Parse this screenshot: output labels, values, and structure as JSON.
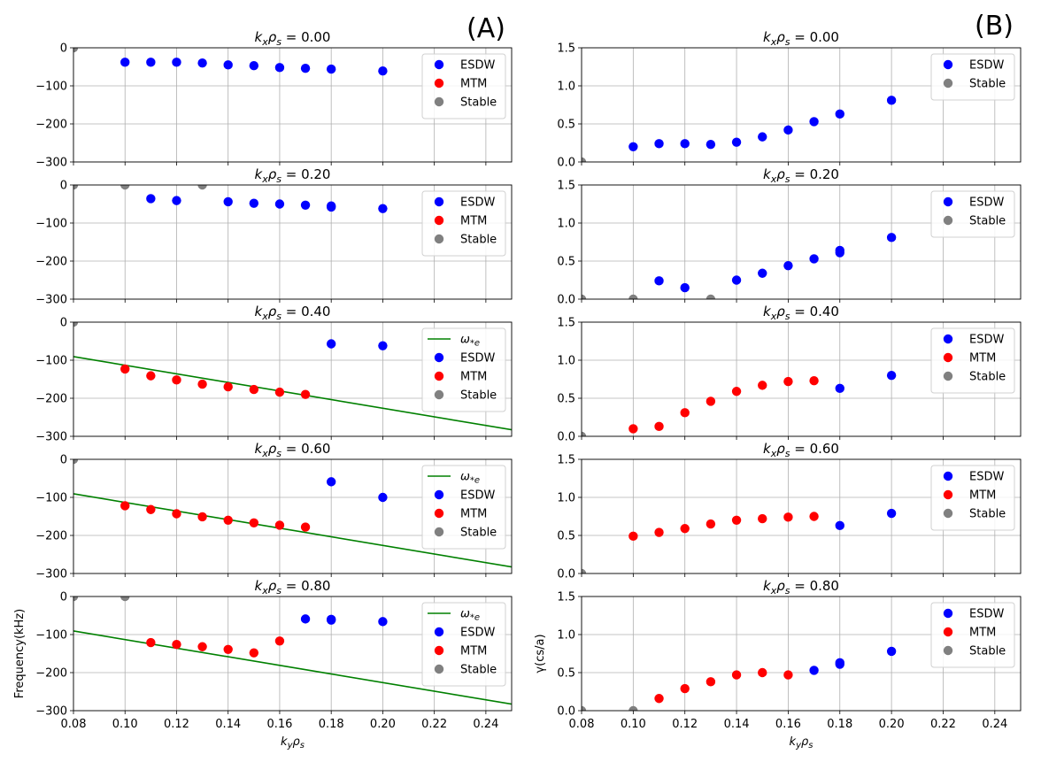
{
  "figure": {
    "panel_labels": [
      "(A)",
      "(B)"
    ],
    "legend_labels": {
      "omega": "ω*e",
      "ESDW": "ESDW",
      "MTM": "MTM",
      "Stable": "Stable"
    },
    "colors": {
      "ESDW": "#0000ff",
      "MTM": "#ff0000",
      "Stable": "#808080",
      "omega": "#008000",
      "grid": "#b0b0b0"
    }
  },
  "chart_data": [
    {
      "type": "scatter",
      "panel": "A",
      "title": "k_x ρ_s = 0.00",
      "title_kx": "0.00",
      "xlabel": "",
      "ylabel": "",
      "xlim": [
        0.08,
        0.25
      ],
      "ylim": [
        -300,
        0
      ],
      "xticks": [],
      "yticks": [
        0,
        -100,
        -200,
        -300
      ],
      "ytick_labels": [
        "0",
        "−100",
        "−200",
        "−300"
      ],
      "grid": true,
      "legend_position": "top-right",
      "legend": [
        "ESDW",
        "MTM",
        "Stable"
      ],
      "series": [
        {
          "name": "ESDW",
          "x": [
            0.1,
            0.11,
            0.12,
            0.13,
            0.14,
            0.15,
            0.16,
            0.17,
            0.18,
            0.2
          ],
          "y": [
            -38,
            -38,
            -38,
            -40,
            -45,
            -47,
            -52,
            -54,
            -56,
            -61
          ]
        },
        {
          "name": "MTM",
          "x": [],
          "y": []
        },
        {
          "name": "Stable",
          "x": [
            0.08
          ],
          "y": [
            0
          ]
        }
      ]
    },
    {
      "type": "scatter",
      "panel": "A",
      "title": "k_x ρ_s = 0.20",
      "title_kx": "0.20",
      "xlabel": "",
      "ylabel": "",
      "xlim": [
        0.08,
        0.25
      ],
      "ylim": [
        -300,
        0
      ],
      "xticks": [],
      "yticks": [
        0,
        -100,
        -200,
        -300
      ],
      "ytick_labels": [
        "0",
        "−100",
        "−200",
        "−300"
      ],
      "grid": true,
      "legend_position": "top-right",
      "legend": [
        "ESDW",
        "MTM",
        "Stable"
      ],
      "series": [
        {
          "name": "ESDW",
          "x": [
            0.11,
            0.12,
            0.14,
            0.15,
            0.16,
            0.17,
            0.18,
            0.18,
            0.2
          ],
          "y": [
            -36,
            -41,
            -44,
            -48,
            -50,
            -53,
            -55,
            -58,
            -62
          ]
        },
        {
          "name": "MTM",
          "x": [],
          "y": []
        },
        {
          "name": "Stable",
          "x": [
            0.08,
            0.1,
            0.13
          ],
          "y": [
            0,
            0,
            0
          ]
        }
      ]
    },
    {
      "type": "scatter",
      "panel": "A",
      "title": "k_x ρ_s = 0.40",
      "title_kx": "0.40",
      "xlabel": "",
      "ylabel": "",
      "xlim": [
        0.08,
        0.25
      ],
      "ylim": [
        -300,
        0
      ],
      "xticks": [],
      "yticks": [
        0,
        -100,
        -200,
        -300
      ],
      "ytick_labels": [
        "0",
        "−100",
        "−200",
        "−300"
      ],
      "grid": true,
      "legend_position": "top-right",
      "legend": [
        "omega",
        "ESDW",
        "MTM",
        "Stable"
      ],
      "line": {
        "name": "omega",
        "x": [
          0.08,
          0.25
        ],
        "y": [
          -90.5,
          -282.8
        ]
      },
      "series": [
        {
          "name": "ESDW",
          "x": [
            0.18,
            0.2
          ],
          "y": [
            -57,
            -62
          ]
        },
        {
          "name": "MTM",
          "x": [
            0.1,
            0.11,
            0.12,
            0.13,
            0.14,
            0.15,
            0.16,
            0.17
          ],
          "y": [
            -123,
            -141,
            -152,
            -163,
            -170,
            -177,
            -184,
            -190
          ]
        },
        {
          "name": "Stable",
          "x": [
            0.08
          ],
          "y": [
            0
          ]
        }
      ]
    },
    {
      "type": "scatter",
      "panel": "A",
      "title": "k_x ρ_s = 0.60",
      "title_kx": "0.60",
      "xlabel": "",
      "ylabel": "",
      "xlim": [
        0.08,
        0.25
      ],
      "ylim": [
        -300,
        0
      ],
      "xticks": [],
      "yticks": [
        0,
        -100,
        -200,
        -300
      ],
      "ytick_labels": [
        "0",
        "−100",
        "−200",
        "−300"
      ],
      "grid": true,
      "legend_position": "top-right",
      "legend": [
        "omega",
        "ESDW",
        "MTM",
        "Stable"
      ],
      "line": {
        "name": "omega",
        "x": [
          0.08,
          0.25
        ],
        "y": [
          -90.5,
          -282.8
        ]
      },
      "series": [
        {
          "name": "ESDW",
          "x": [
            0.18,
            0.2
          ],
          "y": [
            -59,
            -100
          ]
        },
        {
          "name": "MTM",
          "x": [
            0.1,
            0.11,
            0.12,
            0.13,
            0.14,
            0.15,
            0.16,
            0.17
          ],
          "y": [
            -122,
            -132,
            -143,
            -151,
            -160,
            -167,
            -173,
            -178
          ]
        },
        {
          "name": "Stable",
          "x": [
            0.08
          ],
          "y": [
            0
          ]
        }
      ]
    },
    {
      "type": "scatter",
      "panel": "A",
      "title": "k_x ρ_s = 0.80",
      "title_kx": "0.80",
      "xlabel": "k_y ρ_s",
      "ylabel": "Frequency(kHz)",
      "xlim": [
        0.08,
        0.25
      ],
      "ylim": [
        -300,
        0
      ],
      "xticks": [
        0.08,
        0.1,
        0.12,
        0.14,
        0.16,
        0.18,
        0.2,
        0.22,
        0.24
      ],
      "xtick_labels": [
        "0.08",
        "0.10",
        "0.12",
        "0.14",
        "0.16",
        "0.18",
        "0.20",
        "0.22",
        "0.24"
      ],
      "yticks": [
        0,
        -100,
        -200,
        -300
      ],
      "ytick_labels": [
        "0",
        "−100",
        "−200",
        "−300"
      ],
      "grid": true,
      "legend_position": "top-right",
      "legend": [
        "omega",
        "ESDW",
        "MTM",
        "Stable"
      ],
      "line": {
        "name": "omega",
        "x": [
          0.08,
          0.25
        ],
        "y": [
          -90.5,
          -282.8
        ]
      },
      "series": [
        {
          "name": "ESDW",
          "x": [
            0.17,
            0.18,
            0.18,
            0.2
          ],
          "y": [
            -59,
            -60,
            -62,
            -66
          ]
        },
        {
          "name": "MTM",
          "x": [
            0.11,
            0.12,
            0.13,
            0.14,
            0.15,
            0.16
          ],
          "y": [
            -121,
            -126,
            -132,
            -139,
            -148,
            -117
          ]
        },
        {
          "name": "Stable",
          "x": [
            0.08,
            0.1
          ],
          "y": [
            0,
            0
          ]
        }
      ]
    },
    {
      "type": "scatter",
      "panel": "B",
      "title": "k_x ρ_s = 0.00",
      "title_kx": "0.00",
      "xlabel": "",
      "ylabel": "",
      "xlim": [
        0.08,
        0.25
      ],
      "ylim": [
        0,
        1.5
      ],
      "xticks": [],
      "yticks": [
        0,
        0.5,
        1.0,
        1.5
      ],
      "ytick_labels": [
        "0.0",
        "0.5",
        "1.0",
        "1.5"
      ],
      "grid": true,
      "legend_position": "top-right",
      "legend": [
        "ESDW",
        "Stable"
      ],
      "series": [
        {
          "name": "ESDW",
          "x": [
            0.1,
            0.11,
            0.12,
            0.13,
            0.14,
            0.15,
            0.16,
            0.17,
            0.18,
            0.2
          ],
          "y": [
            0.2,
            0.24,
            0.24,
            0.23,
            0.26,
            0.33,
            0.42,
            0.53,
            0.63,
            0.81
          ]
        },
        {
          "name": "Stable",
          "x": [
            0.08
          ],
          "y": [
            0
          ]
        }
      ]
    },
    {
      "type": "scatter",
      "panel": "B",
      "title": "k_x ρ_s = 0.20",
      "title_kx": "0.20",
      "xlabel": "",
      "ylabel": "",
      "xlim": [
        0.08,
        0.25
      ],
      "ylim": [
        0,
        1.5
      ],
      "xticks": [],
      "yticks": [
        0,
        0.5,
        1.0,
        1.5
      ],
      "ytick_labels": [
        "0.0",
        "0.5",
        "1.0",
        "1.5"
      ],
      "grid": true,
      "legend_position": "top-right",
      "legend": [
        "ESDW",
        "Stable"
      ],
      "series": [
        {
          "name": "ESDW",
          "x": [
            0.11,
            0.12,
            0.14,
            0.15,
            0.16,
            0.17,
            0.18,
            0.18,
            0.2
          ],
          "y": [
            0.24,
            0.15,
            0.25,
            0.34,
            0.44,
            0.53,
            0.61,
            0.64,
            0.81
          ]
        },
        {
          "name": "Stable",
          "x": [
            0.08,
            0.1,
            0.13
          ],
          "y": [
            0,
            0,
            0
          ]
        }
      ]
    },
    {
      "type": "scatter",
      "panel": "B",
      "title": "k_x ρ_s = 0.40",
      "title_kx": "0.40",
      "xlabel": "",
      "ylabel": "",
      "xlim": [
        0.08,
        0.25
      ],
      "ylim": [
        0,
        1.5
      ],
      "xticks": [],
      "yticks": [
        0,
        0.5,
        1.0,
        1.5
      ],
      "ytick_labels": [
        "0.0",
        "0.5",
        "1.0",
        "1.5"
      ],
      "grid": true,
      "legend_position": "top-right",
      "legend": [
        "ESDW",
        "MTM",
        "Stable"
      ],
      "series": [
        {
          "name": "ESDW",
          "x": [
            0.18,
            0.2
          ],
          "y": [
            0.63,
            0.8
          ]
        },
        {
          "name": "MTM",
          "x": [
            0.1,
            0.11,
            0.12,
            0.13,
            0.14,
            0.15,
            0.16,
            0.17
          ],
          "y": [
            0.1,
            0.13,
            0.31,
            0.46,
            0.59,
            0.67,
            0.72,
            0.73
          ]
        },
        {
          "name": "Stable",
          "x": [
            0.08
          ],
          "y": [
            0
          ]
        }
      ]
    },
    {
      "type": "scatter",
      "panel": "B",
      "title": "k_x ρ_s = 0.60",
      "title_kx": "0.60",
      "xlabel": "",
      "ylabel": "",
      "xlim": [
        0.08,
        0.25
      ],
      "ylim": [
        0,
        1.5
      ],
      "xticks": [],
      "yticks": [
        0,
        0.5,
        1.0,
        1.5
      ],
      "ytick_labels": [
        "0.0",
        "0.5",
        "1.0",
        "1.5"
      ],
      "grid": true,
      "legend_position": "top-right",
      "legend": [
        "ESDW",
        "MTM",
        "Stable"
      ],
      "series": [
        {
          "name": "ESDW",
          "x": [
            0.18,
            0.2
          ],
          "y": [
            0.63,
            0.79
          ]
        },
        {
          "name": "MTM",
          "x": [
            0.1,
            0.11,
            0.12,
            0.13,
            0.14,
            0.15,
            0.16,
            0.17
          ],
          "y": [
            0.49,
            0.54,
            0.59,
            0.65,
            0.7,
            0.72,
            0.74,
            0.75
          ]
        },
        {
          "name": "Stable",
          "x": [
            0.08
          ],
          "y": [
            0
          ]
        }
      ]
    },
    {
      "type": "scatter",
      "panel": "B",
      "title": "k_x ρ_s = 0.80",
      "title_kx": "0.80",
      "xlabel": "k_y ρ_s",
      "ylabel": "γ(cs/a)",
      "xlim": [
        0.08,
        0.25
      ],
      "ylim": [
        0,
        1.5
      ],
      "xticks": [
        0.08,
        0.1,
        0.12,
        0.14,
        0.16,
        0.18,
        0.2,
        0.22,
        0.24
      ],
      "xtick_labels": [
        "0.08",
        "0.10",
        "0.12",
        "0.14",
        "0.16",
        "0.18",
        "0.20",
        "0.22",
        "0.24"
      ],
      "yticks": [
        0,
        0.5,
        1.0,
        1.5
      ],
      "ytick_labels": [
        "0.0",
        "0.5",
        "1.0",
        "1.5"
      ],
      "grid": true,
      "legend_position": "top-right",
      "legend": [
        "ESDW",
        "MTM",
        "Stable"
      ],
      "series": [
        {
          "name": "ESDW",
          "x": [
            0.17,
            0.18,
            0.18,
            0.2
          ],
          "y": [
            0.53,
            0.61,
            0.63,
            0.78
          ]
        },
        {
          "name": "MTM",
          "x": [
            0.11,
            0.12,
            0.13,
            0.14,
            0.15,
            0.16
          ],
          "y": [
            0.16,
            0.29,
            0.38,
            0.47,
            0.5,
            0.47
          ]
        },
        {
          "name": "Stable",
          "x": [
            0.08,
            0.1
          ],
          "y": [
            0,
            0
          ]
        }
      ]
    }
  ]
}
